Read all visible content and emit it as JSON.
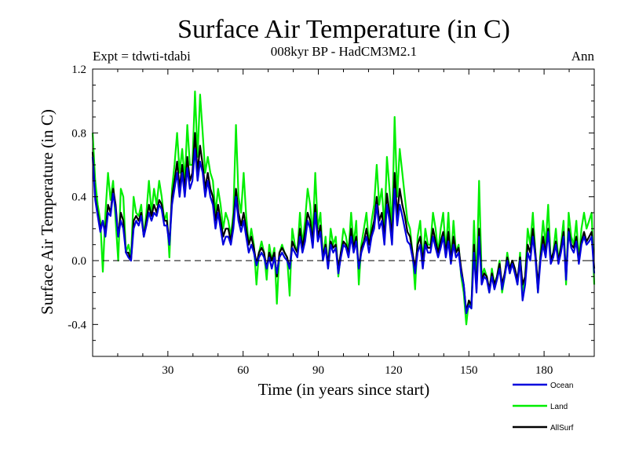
{
  "chart_data": {
    "type": "line",
    "title": "Surface Air Temperature (in C)",
    "subtitle": "008kyr BP - HadCM3M2.1",
    "experiment": "Expt = tdwti-tdabi",
    "season": "Ann",
    "xlabel": "Time (in years since start)",
    "ylabel": "Surface Air Temperature (in C)",
    "xlim": [
      0,
      200
    ],
    "ylim": [
      -0.6,
      1.2
    ],
    "xticks": [
      30,
      60,
      90,
      120,
      150,
      180
    ],
    "yticks": [
      -0.4,
      0.0,
      0.4,
      0.8,
      1.2
    ],
    "ytick_labels": [
      "-0.4",
      "0.0",
      "0.4",
      "0.8",
      "1.2"
    ],
    "reference_line": 0.0,
    "series": [
      {
        "name": "Land",
        "color": "#00ee00",
        "values": [
          0.8,
          0.5,
          0.35,
          0.25,
          -0.07,
          0.3,
          0.55,
          0.38,
          0.5,
          0.25,
          0.0,
          0.45,
          0.4,
          0.05,
          0.1,
          0.02,
          0.4,
          0.3,
          0.28,
          0.35,
          0.15,
          0.3,
          0.5,
          0.3,
          0.45,
          0.35,
          0.5,
          0.4,
          0.25,
          0.3,
          0.02,
          0.45,
          0.6,
          0.8,
          0.55,
          0.7,
          0.5,
          0.85,
          0.6,
          0.6,
          1.06,
          0.65,
          1.04,
          0.8,
          0.55,
          0.65,
          0.55,
          0.5,
          0.3,
          0.45,
          0.35,
          0.2,
          0.3,
          0.25,
          0.15,
          0.3,
          0.85,
          0.4,
          0.3,
          0.55,
          0.28,
          0.1,
          0.2,
          0.1,
          -0.15,
          0.05,
          0.12,
          0.05,
          -0.12,
          0.1,
          0.0,
          0.08,
          -0.27,
          0.05,
          0.1,
          0.05,
          0.02,
          -0.22,
          0.2,
          0.1,
          0.05,
          0.3,
          0.1,
          0.25,
          0.45,
          0.35,
          0.15,
          0.55,
          0.2,
          0.3,
          0.0,
          0.15,
          -0.05,
          0.2,
          0.1,
          0.15,
          -0.1,
          0.05,
          0.2,
          0.15,
          0.05,
          0.3,
          0.1,
          0.25,
          -0.15,
          0.1,
          0.2,
          0.3,
          0.1,
          0.25,
          0.35,
          0.6,
          0.35,
          0.45,
          0.2,
          0.65,
          0.45,
          0.2,
          0.9,
          0.4,
          0.7,
          0.55,
          0.4,
          0.25,
          0.2,
          0.05,
          -0.18,
          0.15,
          0.25,
          0.0,
          0.2,
          0.1,
          0.1,
          0.3,
          0.2,
          0.05,
          0.2,
          0.3,
          0.05,
          0.3,
          0.0,
          0.25,
          0.05,
          0.1,
          -0.1,
          -0.2,
          -0.4,
          -0.25,
          -0.3,
          0.25,
          -0.15,
          0.5,
          -0.1,
          -0.05,
          -0.1,
          -0.2,
          -0.05,
          -0.15,
          -0.1,
          0.0,
          -0.2,
          -0.1,
          0.05,
          -0.05,
          0.0,
          -0.05,
          -0.15,
          0.05,
          -0.2,
          -0.1,
          0.2,
          0.1,
          0.3,
          0.05,
          -0.2,
          0.05,
          0.25,
          0.1,
          0.35,
          0.0,
          0.05,
          0.2,
          0.0,
          0.1,
          0.25,
          -0.15,
          0.3,
          0.15,
          0.1,
          0.25,
          0.0,
          0.2,
          0.3,
          0.2,
          0.25,
          0.3,
          -0.15
        ]
      },
      {
        "name": "AllSurf",
        "color": "#000000",
        "values": [
          0.68,
          0.4,
          0.3,
          0.2,
          0.25,
          0.18,
          0.35,
          0.3,
          0.45,
          0.35,
          0.15,
          0.3,
          0.25,
          0.05,
          0.05,
          0.0,
          0.25,
          0.28,
          0.25,
          0.3,
          0.15,
          0.25,
          0.35,
          0.28,
          0.35,
          0.3,
          0.38,
          0.35,
          0.25,
          0.25,
          0.1,
          0.4,
          0.5,
          0.62,
          0.45,
          0.6,
          0.45,
          0.65,
          0.5,
          0.55,
          0.8,
          0.55,
          0.72,
          0.6,
          0.45,
          0.55,
          0.45,
          0.4,
          0.25,
          0.35,
          0.25,
          0.15,
          0.2,
          0.2,
          0.12,
          0.25,
          0.45,
          0.3,
          0.22,
          0.3,
          0.2,
          0.1,
          0.15,
          0.08,
          -0.02,
          0.05,
          0.08,
          0.05,
          -0.05,
          0.05,
          0.0,
          0.05,
          -0.1,
          0.05,
          0.08,
          0.05,
          0.02,
          -0.05,
          0.12,
          0.08,
          0.05,
          0.2,
          0.08,
          0.18,
          0.3,
          0.25,
          0.12,
          0.35,
          0.15,
          0.22,
          0.02,
          0.1,
          -0.02,
          0.12,
          0.08,
          0.1,
          -0.05,
          0.05,
          0.12,
          0.1,
          0.05,
          0.2,
          0.08,
          0.15,
          -0.05,
          0.08,
          0.12,
          0.2,
          0.1,
          0.18,
          0.25,
          0.4,
          0.25,
          0.3,
          0.15,
          0.42,
          0.3,
          0.15,
          0.55,
          0.28,
          0.45,
          0.35,
          0.28,
          0.18,
          0.15,
          0.05,
          -0.05,
          0.1,
          0.15,
          0.0,
          0.12,
          0.08,
          0.08,
          0.2,
          0.12,
          0.05,
          0.12,
          0.18,
          0.05,
          0.18,
          0.0,
          0.15,
          0.05,
          0.08,
          -0.05,
          -0.15,
          -0.32,
          -0.25,
          -0.28,
          0.1,
          -0.18,
          0.2,
          -0.12,
          -0.08,
          -0.1,
          -0.18,
          -0.08,
          -0.15,
          -0.1,
          -0.02,
          -0.15,
          -0.08,
          0.02,
          -0.05,
          0.0,
          -0.05,
          -0.12,
          0.02,
          -0.15,
          -0.1,
          0.1,
          0.05,
          0.2,
          0.05,
          -0.15,
          0.02,
          0.15,
          0.05,
          0.2,
          0.0,
          0.05,
          0.12,
          0.0,
          0.08,
          0.18,
          -0.1,
          0.2,
          0.1,
          0.08,
          0.15,
          0.0,
          0.12,
          0.18,
          0.12,
          0.15,
          0.18,
          -0.05
        ]
      },
      {
        "name": "Ocean",
        "color": "#0000dd",
        "values": [
          0.65,
          0.38,
          0.28,
          0.18,
          0.25,
          0.15,
          0.3,
          0.28,
          0.42,
          0.32,
          0.15,
          0.25,
          0.2,
          0.05,
          0.02,
          0.0,
          0.2,
          0.25,
          0.22,
          0.28,
          0.15,
          0.22,
          0.3,
          0.25,
          0.3,
          0.28,
          0.35,
          0.32,
          0.22,
          0.22,
          0.1,
          0.35,
          0.45,
          0.55,
          0.4,
          0.55,
          0.4,
          0.58,
          0.45,
          0.5,
          0.7,
          0.5,
          0.62,
          0.55,
          0.4,
          0.5,
          0.4,
          0.35,
          0.2,
          0.3,
          0.2,
          0.1,
          0.15,
          0.15,
          0.1,
          0.2,
          0.4,
          0.25,
          0.18,
          0.25,
          0.15,
          0.05,
          0.1,
          0.05,
          -0.03,
          0.02,
          0.05,
          0.02,
          -0.05,
          0.02,
          -0.05,
          0.02,
          -0.08,
          0.02,
          0.05,
          0.02,
          0.0,
          -0.05,
          0.08,
          0.05,
          0.02,
          0.15,
          0.05,
          0.12,
          0.25,
          0.2,
          0.08,
          0.3,
          0.12,
          0.18,
          0.0,
          0.08,
          -0.05,
          0.1,
          0.05,
          0.08,
          -0.08,
          0.02,
          0.1,
          0.08,
          0.02,
          0.15,
          0.05,
          0.12,
          -0.05,
          0.05,
          0.1,
          0.15,
          0.05,
          0.15,
          0.2,
          0.35,
          0.2,
          0.25,
          0.1,
          0.35,
          0.25,
          0.1,
          0.45,
          0.22,
          0.35,
          0.28,
          0.2,
          0.12,
          0.1,
          0.02,
          -0.08,
          0.05,
          0.1,
          -0.05,
          0.1,
          0.05,
          0.05,
          0.15,
          0.08,
          0.02,
          0.08,
          0.15,
          0.02,
          0.12,
          -0.02,
          0.1,
          0.02,
          0.05,
          -0.08,
          -0.15,
          -0.33,
          -0.28,
          -0.3,
          0.05,
          -0.2,
          0.15,
          -0.15,
          -0.1,
          -0.12,
          -0.2,
          -0.1,
          -0.18,
          -0.12,
          -0.05,
          -0.18,
          -0.1,
          0.0,
          -0.08,
          -0.02,
          -0.08,
          -0.15,
          0.0,
          -0.25,
          -0.15,
          0.05,
          0.0,
          0.15,
          0.02,
          -0.2,
          0.0,
          0.1,
          0.02,
          0.18,
          -0.02,
          0.02,
          0.1,
          -0.02,
          0.05,
          0.15,
          -0.12,
          0.18,
          0.08,
          0.05,
          0.12,
          -0.02,
          0.1,
          0.15,
          0.1,
          0.12,
          0.15,
          -0.08
        ]
      }
    ],
    "legend": [
      {
        "label": "Ocean",
        "color": "#0000dd"
      },
      {
        "label": "Land",
        "color": "#00ee00"
      },
      {
        "label": "AllSurf",
        "color": "#000000"
      }
    ]
  }
}
